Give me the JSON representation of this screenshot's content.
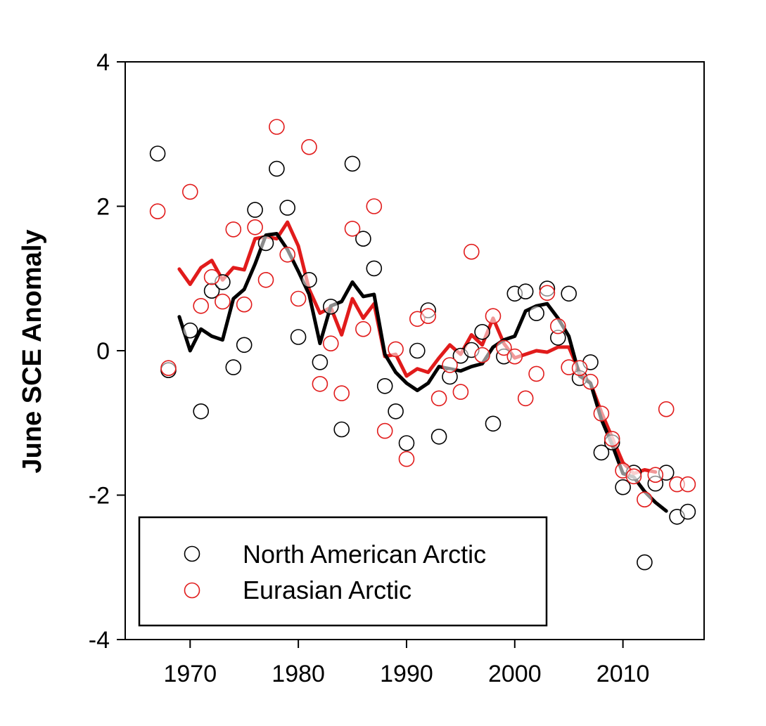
{
  "chart_data": {
    "type": "scatter",
    "title": "",
    "xlabel": "",
    "ylabel": "June SCE Anomaly",
    "xlim": [
      1964,
      2017.5
    ],
    "ylim": [
      -4,
      4
    ],
    "xticks": [
      1970,
      1980,
      1990,
      2000,
      2010
    ],
    "yticks": [
      -4,
      -2,
      0,
      2,
      4
    ],
    "grid": false,
    "legend_position": "bottom-left",
    "series": [
      {
        "name": "North American Arctic",
        "color": "#000000",
        "marker": "open-circle",
        "points": [
          [
            1967,
            2.73
          ],
          [
            1968,
            -0.27
          ],
          [
            1970,
            0.28
          ],
          [
            1971,
            -0.84
          ],
          [
            1972,
            0.83
          ],
          [
            1973,
            0.95
          ],
          [
            1974,
            -0.23
          ],
          [
            1975,
            0.08
          ],
          [
            1976,
            1.95
          ],
          [
            1977,
            1.49
          ],
          [
            1978,
            2.52
          ],
          [
            1979,
            1.98
          ],
          [
            1980,
            0.19
          ],
          [
            1981,
            0.98
          ],
          [
            1982,
            -0.16
          ],
          [
            1983,
            0.61
          ],
          [
            1984,
            -1.09
          ],
          [
            1985,
            2.59
          ],
          [
            1986,
            1.55
          ],
          [
            1987,
            1.14
          ],
          [
            1988,
            -0.49
          ],
          [
            1989,
            -0.84
          ],
          [
            1990,
            -1.28
          ],
          [
            1991,
            0.0
          ],
          [
            1992,
            0.56
          ],
          [
            1993,
            -1.19
          ],
          [
            1994,
            -0.36
          ],
          [
            1995,
            -0.07
          ],
          [
            1996,
            0.01
          ],
          [
            1997,
            0.26
          ],
          [
            1998,
            -1.01
          ],
          [
            1999,
            -0.08
          ],
          [
            2000,
            0.79
          ],
          [
            2001,
            0.82
          ],
          [
            2002,
            0.52
          ],
          [
            2003,
            0.86
          ],
          [
            2004,
            0.18
          ],
          [
            2005,
            0.79
          ],
          [
            2006,
            -0.38
          ],
          [
            2007,
            -0.16
          ],
          [
            2008,
            -1.41
          ],
          [
            2009,
            -1.27
          ],
          [
            2010,
            -1.89
          ],
          [
            2011,
            -1.69
          ],
          [
            2012,
            -2.93
          ],
          [
            2013,
            -1.84
          ],
          [
            2014,
            -1.69
          ],
          [
            2015,
            -2.3
          ],
          [
            2016,
            -2.23
          ]
        ],
        "smoothed": [
          [
            1969,
            0.47
          ],
          [
            1970,
            0.0
          ],
          [
            1971,
            0.3
          ],
          [
            1972,
            0.2
          ],
          [
            1973,
            0.15
          ],
          [
            1974,
            0.72
          ],
          [
            1975,
            0.85
          ],
          [
            1976,
            1.2
          ],
          [
            1977,
            1.6
          ],
          [
            1978,
            1.62
          ],
          [
            1979,
            1.4
          ],
          [
            1980,
            1.1
          ],
          [
            1981,
            0.78
          ],
          [
            1982,
            0.1
          ],
          [
            1983,
            0.62
          ],
          [
            1984,
            0.68
          ],
          [
            1985,
            0.95
          ],
          [
            1986,
            0.75
          ],
          [
            1987,
            0.78
          ],
          [
            1988,
            -0.05
          ],
          [
            1989,
            -0.3
          ],
          [
            1990,
            -0.45
          ],
          [
            1991,
            -0.55
          ],
          [
            1992,
            -0.45
          ],
          [
            1993,
            -0.22
          ],
          [
            1994,
            -0.25
          ],
          [
            1995,
            -0.28
          ],
          [
            1996,
            -0.22
          ],
          [
            1997,
            -0.18
          ],
          [
            1998,
            0.05
          ],
          [
            1999,
            0.15
          ],
          [
            2000,
            0.2
          ],
          [
            2001,
            0.55
          ],
          [
            2002,
            0.62
          ],
          [
            2003,
            0.65
          ],
          [
            2004,
            0.45
          ],
          [
            2005,
            0.2
          ],
          [
            2006,
            -0.35
          ],
          [
            2007,
            -0.45
          ],
          [
            2008,
            -0.95
          ],
          [
            2009,
            -1.3
          ],
          [
            2010,
            -1.7
          ],
          [
            2011,
            -1.75
          ],
          [
            2012,
            -1.95
          ],
          [
            2013,
            -2.1
          ],
          [
            2014,
            -2.22
          ]
        ]
      },
      {
        "name": "Eurasian Arctic",
        "color": "#e11b1b",
        "marker": "open-circle",
        "points": [
          [
            1967,
            1.93
          ],
          [
            1968,
            -0.24
          ],
          [
            1970,
            2.2
          ],
          [
            1971,
            0.62
          ],
          [
            1972,
            1.02
          ],
          [
            1973,
            0.68
          ],
          [
            1974,
            1.68
          ],
          [
            1975,
            0.64
          ],
          [
            1976,
            1.71
          ],
          [
            1977,
            0.98
          ],
          [
            1978,
            3.1
          ],
          [
            1979,
            1.33
          ],
          [
            1980,
            0.72
          ],
          [
            1981,
            2.82
          ],
          [
            1982,
            -0.46
          ],
          [
            1983,
            0.1
          ],
          [
            1984,
            -0.59
          ],
          [
            1985,
            1.69
          ],
          [
            1986,
            0.3
          ],
          [
            1987,
            2.0
          ],
          [
            1988,
            -1.11
          ],
          [
            1989,
            0.02
          ],
          [
            1990,
            -1.5
          ],
          [
            1991,
            0.44
          ],
          [
            1992,
            0.48
          ],
          [
            1993,
            -0.66
          ],
          [
            1994,
            -0.2
          ],
          [
            1995,
            -0.57
          ],
          [
            1996,
            1.37
          ],
          [
            1997,
            -0.06
          ],
          [
            1998,
            0.48
          ],
          [
            1999,
            0.04
          ],
          [
            2000,
            -0.08
          ],
          [
            2001,
            -0.66
          ],
          [
            2002,
            -0.32
          ],
          [
            2003,
            0.8
          ],
          [
            2004,
            0.34
          ],
          [
            2005,
            -0.23
          ],
          [
            2006,
            -0.24
          ],
          [
            2007,
            -0.43
          ],
          [
            2008,
            -0.87
          ],
          [
            2009,
            -1.22
          ],
          [
            2010,
            -1.66
          ],
          [
            2011,
            -1.74
          ],
          [
            2012,
            -2.06
          ],
          [
            2013,
            -1.72
          ],
          [
            2014,
            -0.81
          ],
          [
            2015,
            -1.85
          ],
          [
            2016,
            -1.85
          ]
        ],
        "smoothed": [
          [
            1969,
            1.13
          ],
          [
            1970,
            0.92
          ],
          [
            1971,
            1.15
          ],
          [
            1972,
            1.25
          ],
          [
            1973,
            0.98
          ],
          [
            1974,
            1.15
          ],
          [
            1975,
            1.12
          ],
          [
            1976,
            1.55
          ],
          [
            1977,
            1.58
          ],
          [
            1978,
            1.55
          ],
          [
            1979,
            1.78
          ],
          [
            1980,
            1.45
          ],
          [
            1981,
            0.85
          ],
          [
            1982,
            0.52
          ],
          [
            1983,
            0.6
          ],
          [
            1984,
            0.22
          ],
          [
            1985,
            0.72
          ],
          [
            1986,
            0.45
          ],
          [
            1987,
            0.65
          ],
          [
            1988,
            -0.08
          ],
          [
            1989,
            -0.05
          ],
          [
            1990,
            -0.35
          ],
          [
            1991,
            -0.25
          ],
          [
            1992,
            -0.3
          ],
          [
            1993,
            -0.1
          ],
          [
            1994,
            0.08
          ],
          [
            1995,
            -0.05
          ],
          [
            1996,
            0.22
          ],
          [
            1997,
            0.08
          ],
          [
            1998,
            0.45
          ],
          [
            1999,
            0.1
          ],
          [
            2000,
            -0.1
          ],
          [
            2001,
            -0.05
          ],
          [
            2002,
            0.0
          ],
          [
            2003,
            -0.02
          ],
          [
            2004,
            0.05
          ],
          [
            2005,
            0.05
          ],
          [
            2006,
            -0.3
          ],
          [
            2007,
            -0.45
          ],
          [
            2008,
            -0.85
          ],
          [
            2009,
            -1.2
          ],
          [
            2010,
            -1.55
          ],
          [
            2011,
            -1.7
          ],
          [
            2012,
            -1.65
          ],
          [
            2013,
            -1.68
          ]
        ]
      }
    ]
  }
}
